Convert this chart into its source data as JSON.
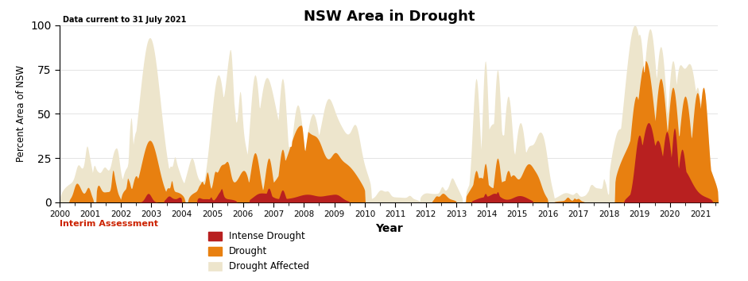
{
  "title": "NSW Area in Drought",
  "subtitle": "Data current to 31 July 2021",
  "xlabel": "Year",
  "ylabel": "Percent Area of NSW",
  "ylim": [
    0,
    100
  ],
  "xlim": [
    2000.0,
    2021.58
  ],
  "color_intense": "#b82020",
  "color_drought": "#e88010",
  "color_affected": "#ede5cc",
  "interim_text": "Interim Assessment",
  "interim_color": "#cc2200",
  "legend_labels": [
    "Intense Drought",
    "Drought",
    "Drought Affected"
  ],
  "xticks": [
    2000,
    2001,
    2002,
    2003,
    2004,
    2005,
    2006,
    2007,
    2008,
    2009,
    2010,
    2011,
    2012,
    2013,
    2014,
    2015,
    2016,
    2017,
    2018,
    2019,
    2020,
    2021
  ],
  "background": "#f8f8f0"
}
